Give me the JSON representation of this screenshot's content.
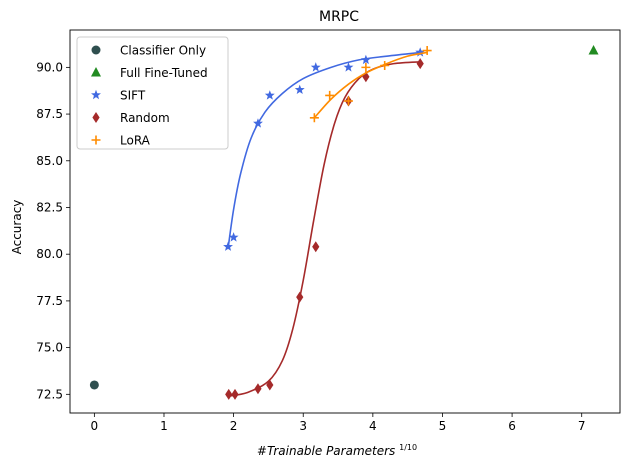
{
  "chart_data": {
    "type": "scatter",
    "title": "MRPC",
    "xlabel": "#Trainable Parameters",
    "xlabel_exponent": "1/10",
    "ylabel": "Accuracy",
    "xlim": [
      -0.35,
      7.55
    ],
    "ylim": [
      71.5,
      92.0
    ],
    "xticks": [
      0,
      1,
      2,
      3,
      4,
      5,
      6,
      7
    ],
    "yticks": [
      72.5,
      75.0,
      77.5,
      80.0,
      82.5,
      85.0,
      87.5,
      90.0
    ],
    "xtick_labels": [
      "0",
      "1",
      "2",
      "3",
      "4",
      "5",
      "6",
      "7"
    ],
    "ytick_labels": [
      "72.5",
      "75.0",
      "77.5",
      "80.0",
      "82.5",
      "85.0",
      "87.5",
      "90.0"
    ],
    "grid": false,
    "legend_position": "top-left",
    "series": [
      {
        "name": "Classifier Only",
        "marker": "circle",
        "color": "#2f4f4f",
        "points": [
          [
            0.0,
            73.0
          ]
        ]
      },
      {
        "name": "Full Fine-Tuned",
        "marker": "triangle",
        "color": "#228b22",
        "points": [
          [
            7.17,
            90.9
          ]
        ]
      },
      {
        "name": "SIFT",
        "marker": "star",
        "color": "#4169e1",
        "points": [
          [
            1.92,
            80.4
          ],
          [
            2.0,
            80.9
          ],
          [
            2.35,
            87.0
          ],
          [
            2.52,
            88.5
          ],
          [
            2.95,
            88.8
          ],
          [
            3.18,
            90.0
          ],
          [
            3.65,
            90.0
          ],
          [
            3.9,
            90.4
          ],
          [
            4.68,
            90.8
          ]
        ],
        "fit": [
          [
            1.92,
            80.3
          ],
          [
            2.0,
            82.4
          ],
          [
            2.1,
            84.3
          ],
          [
            2.25,
            86.2
          ],
          [
            2.45,
            87.6
          ],
          [
            2.7,
            88.6
          ],
          [
            3.0,
            89.4
          ],
          [
            3.4,
            90.0
          ],
          [
            3.8,
            90.4
          ],
          [
            4.2,
            90.6
          ],
          [
            4.7,
            90.8
          ]
        ]
      },
      {
        "name": "Random",
        "marker": "diamond",
        "color": "#a52a2a",
        "points": [
          [
            1.93,
            72.5
          ],
          [
            2.02,
            72.5
          ],
          [
            2.35,
            72.8
          ],
          [
            2.52,
            73.0
          ],
          [
            2.95,
            77.7
          ],
          [
            3.18,
            80.4
          ],
          [
            3.65,
            88.2
          ],
          [
            3.9,
            89.5
          ],
          [
            4.68,
            90.2
          ]
        ],
        "fit": [
          [
            1.92,
            72.4
          ],
          [
            2.2,
            72.6
          ],
          [
            2.5,
            73.2
          ],
          [
            2.7,
            74.3
          ],
          [
            2.85,
            76.0
          ],
          [
            3.0,
            78.6
          ],
          [
            3.15,
            81.8
          ],
          [
            3.3,
            84.8
          ],
          [
            3.45,
            87.0
          ],
          [
            3.6,
            88.4
          ],
          [
            3.8,
            89.4
          ],
          [
            4.0,
            89.9
          ],
          [
            4.3,
            90.2
          ],
          [
            4.7,
            90.3
          ]
        ]
      },
      {
        "name": "LoRA",
        "marker": "plus",
        "color": "#ff8c00",
        "points": [
          [
            3.16,
            87.3
          ],
          [
            3.38,
            88.5
          ],
          [
            3.65,
            88.2
          ],
          [
            3.9,
            90.0
          ],
          [
            4.17,
            90.1
          ],
          [
            4.78,
            90.9
          ]
        ],
        "fit": [
          [
            3.16,
            87.3
          ],
          [
            3.4,
            88.3
          ],
          [
            3.65,
            89.1
          ],
          [
            3.9,
            89.7
          ],
          [
            4.2,
            90.2
          ],
          [
            4.5,
            90.6
          ],
          [
            4.78,
            90.8
          ]
        ]
      }
    ]
  }
}
